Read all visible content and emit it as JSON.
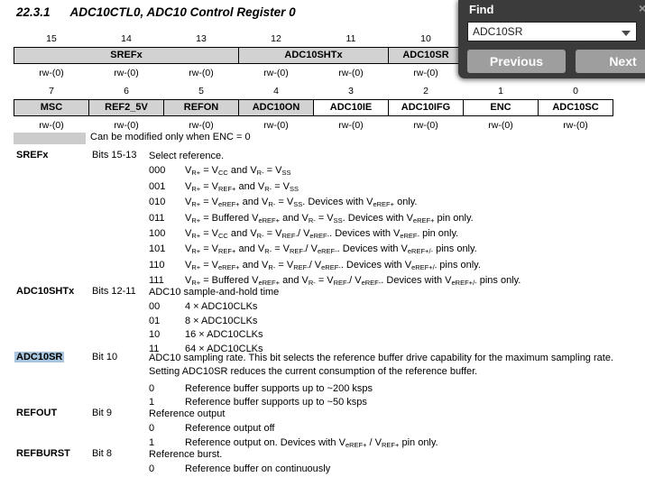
{
  "page": {
    "section_number": "22.3.1",
    "section_title": "ADC10CTL0, ADC10 Control Register 0"
  },
  "find_dialog": {
    "title": "Find",
    "close_icon": "×",
    "search_value": "ADC10SR",
    "previous_label": "Previous",
    "next_label": "Next",
    "colors": {
      "background": "#3b3b3b",
      "button": "#9e9e9e",
      "highlight": "#a9c6de"
    }
  },
  "registers": {
    "row1": {
      "bits": [
        "15",
        "14",
        "13",
        "12",
        "11",
        "10"
      ],
      "fields": [
        {
          "label": "SREFx",
          "span": 3,
          "shaded": true
        },
        {
          "label": "ADC10SHTx",
          "span": 2,
          "shaded": true
        },
        {
          "label": "ADC10SR",
          "span": 1,
          "shaded": true
        }
      ],
      "access": [
        "rw-(0)",
        "rw-(0)",
        "rw-(0)",
        "rw-(0)",
        "rw-(0)",
        "rw-(0)"
      ]
    },
    "row2": {
      "bits": [
        "7",
        "6",
        "5",
        "4",
        "3",
        "2",
        "1",
        "0"
      ],
      "fields": [
        {
          "label": "MSC",
          "shaded": true
        },
        {
          "label": "REF2_5V",
          "shaded": true
        },
        {
          "label": "REFON",
          "shaded": true
        },
        {
          "label": "ADC10ON",
          "shaded": true
        },
        {
          "label": "ADC10IE",
          "shaded": false
        },
        {
          "label": "ADC10IFG",
          "shaded": false
        },
        {
          "label": "ENC",
          "shaded": false
        },
        {
          "label": "ADC10SC",
          "shaded": false
        }
      ],
      "access": [
        "rw-(0)",
        "rw-(0)",
        "rw-(0)",
        "rw-(0)",
        "rw-(0)",
        "rw-(0)",
        "rw-(0)",
        "rw-(0)"
      ]
    },
    "legend_text": "Can be modified only when ENC = 0"
  },
  "descriptions": [
    {
      "name": "SREFx",
      "bits": "Bits 15-13",
      "highlighted": false,
      "lines": [
        "Select reference."
      ],
      "values": [
        {
          "code": "000",
          "text": "V_{R+} = V_{CC} and V_{R-} = V_{SS}"
        },
        {
          "code": "001",
          "text": "V_{R+} = V_{REF+} and V_{R-} = V_{SS}"
        },
        {
          "code": "010",
          "text": "V_{R+} = V_{eREF+} and V_{R-} = V_{SS}. Devices with V_{eREF+} only."
        },
        {
          "code": "011",
          "text": "V_{R+} = Buffered V_{eREF+} and V_{R-} = V_{SS}. Devices with V_{eREF+} pin only."
        },
        {
          "code": "100",
          "text": "V_{R+} = V_{CC} and V_{R-} = V_{REF-}/ V_{eREF-}. Devices with V_{eREF-} pin only."
        },
        {
          "code": "101",
          "text": "V_{R+} = V_{REF+} and V_{R-} = V_{REF-}/ V_{eREF-}. Devices with V_{eREF+/-} pins only."
        },
        {
          "code": "110",
          "text": "V_{R+} = V_{eREF+} and V_{R-} = V_{REF-}/ V_{eREF-}. Devices with V_{eREF+/-} pins only."
        },
        {
          "code": "111",
          "text": "V_{R+} = Buffered V_{eREF+} and V_{R-} = V_{REF-}/ V_{eREF-}. Devices with V_{eREF+/-} pins only."
        }
      ]
    },
    {
      "name": "ADC10SHTx",
      "bits": "Bits 12-11",
      "highlighted": false,
      "lines": [
        "ADC10 sample-and-hold time"
      ],
      "values": [
        {
          "code": "00",
          "text": "4 × ADC10CLKs"
        },
        {
          "code": "01",
          "text": "8 × ADC10CLKs"
        },
        {
          "code": "10",
          "text": "16 × ADC10CLKs"
        },
        {
          "code": "11",
          "text": "64 × ADC10CLKs"
        }
      ]
    },
    {
      "name": "ADC10SR",
      "bits": "Bit 10",
      "highlighted": true,
      "lines": [
        "ADC10 sampling rate. This bit selects the reference buffer drive capability for the maximum sampling rate.",
        "Setting ADC10SR reduces the current consumption of the reference buffer."
      ],
      "values": [
        {
          "code": "0",
          "text": "Reference buffer supports up to ~200 ksps"
        },
        {
          "code": "1",
          "text": "Reference buffer supports up to ~50 ksps"
        }
      ]
    },
    {
      "name": "REFOUT",
      "bits": "Bit 9",
      "highlighted": false,
      "lines": [
        "Reference output"
      ],
      "values": [
        {
          "code": "0",
          "text": "Reference output off"
        },
        {
          "code": "1",
          "text": "Reference output on. Devices with V_{eREF+} / V_{REF+} pin only."
        }
      ]
    },
    {
      "name": "REFBURST",
      "bits": "Bit 8",
      "highlighted": false,
      "lines": [
        "Reference burst."
      ],
      "values": [
        {
          "code": "0",
          "text": "Reference buffer on continuously"
        }
      ]
    }
  ]
}
